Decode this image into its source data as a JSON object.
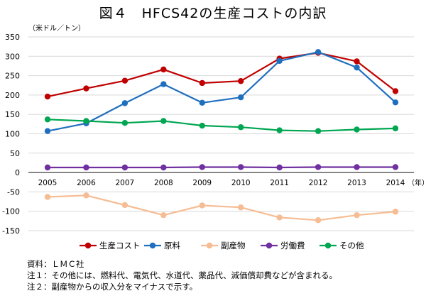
{
  "chart_data": {
    "type": "line",
    "title": "図４　HFCS42の生産コストの内訳",
    "y_unit": "（米ドル／トン）",
    "x_unit": "（年）",
    "x": [
      "2005",
      "2006",
      "2007",
      "2008",
      "2009",
      "2010",
      "2011",
      "2012",
      "2013",
      "2014"
    ],
    "ylim": [
      -150,
      350
    ],
    "yticks": [
      350,
      300,
      250,
      200,
      150,
      100,
      50,
      0,
      -50,
      -100,
      -150
    ],
    "ytick_labels": [
      "350",
      "300",
      "250",
      "200",
      "150",
      "100",
      "50",
      "0",
      "-50",
      "-100",
      "-150"
    ],
    "grid": true,
    "legend_position": "bottom",
    "series": [
      {
        "name": "生産コスト",
        "color": "#c00000",
        "values": [
          196,
          217,
          237,
          266,
          231,
          236,
          294,
          309,
          287,
          210
        ]
      },
      {
        "name": "原料",
        "color": "#1f6fbf",
        "values": [
          107,
          127,
          179,
          228,
          180,
          194,
          288,
          311,
          271,
          181
        ]
      },
      {
        "name": "副産物",
        "color": "#f6bc93",
        "values": [
          -63,
          -59,
          -84,
          -110,
          -85,
          -90,
          -116,
          -123,
          -110,
          -101
        ]
      },
      {
        "name": "労働費",
        "color": "#7030a0",
        "values": [
          13,
          13,
          13,
          13,
          14,
          14,
          13,
          14,
          14,
          14
        ]
      },
      {
        "name": "その他",
        "color": "#00a651",
        "values": [
          137,
          133,
          128,
          133,
          121,
          117,
          109,
          107,
          111,
          114
        ]
      }
    ]
  },
  "notes": [
    "資料：ＬＭＣ社",
    "注１：その他には、燃料代、電気代、水道代、薬品代、減価償却費などが含まれる。",
    "注２：副産物からの収入分をマイナスで示す。"
  ]
}
